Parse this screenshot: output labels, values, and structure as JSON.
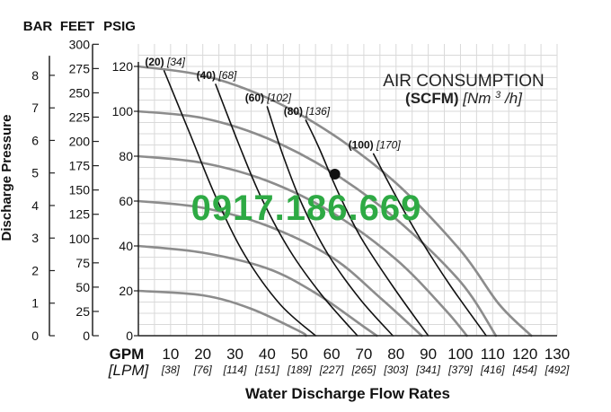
{
  "chart_data": {
    "type": "line",
    "title_line1": "AIR CONSUMPTION",
    "title_line2_bold": "(SCFM)",
    "title_line2_italic": "[Nm",
    "title_line2_sup": "3",
    "title_line2_tail": "/h]",
    "xlabel": "Water Discharge Flow Rates",
    "ylabel": "Discharge Pressure",
    "x_unit_primary": "GPM",
    "x_unit_secondary": "[LPM]",
    "x_ticks": [
      0,
      10,
      20,
      30,
      40,
      50,
      60,
      70,
      80,
      90,
      100,
      110,
      120,
      130
    ],
    "x_tick_labels": [
      "0",
      "10",
      "20",
      "30",
      "40",
      "50",
      "60",
      "70",
      "80",
      "90",
      "100",
      "110",
      "120",
      "130"
    ],
    "x_lpm_labels": [
      "",
      "[38]",
      "[76]",
      "[114]",
      "[151]",
      "[189]",
      "[227]",
      "[265]",
      "[303]",
      "[341]",
      "[379]",
      "[416]",
      "[454]",
      "[492]"
    ],
    "xlim": [
      0,
      130
    ],
    "y_psig": {
      "header": "PSIG",
      "ticks": [
        0,
        20,
        40,
        60,
        80,
        100,
        120
      ],
      "tick_labels": [
        "0",
        "20",
        "40",
        "60",
        "80",
        "100",
        "120"
      ],
      "ylim": [
        0,
        130
      ]
    },
    "y_feet": {
      "header": "FEET",
      "ticks": [
        0,
        25,
        50,
        75,
        100,
        125,
        150,
        175,
        200,
        225,
        250,
        275,
        300
      ],
      "tick_labels": [
        "0",
        "25",
        "50",
        "75",
        "100",
        "125",
        "150",
        "175",
        "200",
        "225",
        "250",
        "275",
        "300"
      ]
    },
    "y_bar": {
      "header": "BAR",
      "ticks": [
        0,
        1,
        2,
        3,
        4,
        5,
        6,
        7,
        8
      ],
      "tick_labels": [
        "0",
        "1",
        "2",
        "3",
        "4",
        "5",
        "6",
        "7",
        "8"
      ]
    },
    "grid": true,
    "pressure_curves": [
      {
        "start_pressure": 120,
        "points": [
          [
            0,
            120
          ],
          [
            20,
            116
          ],
          [
            40,
            106
          ],
          [
            60,
            90
          ],
          [
            80,
            68
          ],
          [
            100,
            38
          ],
          [
            112,
            14
          ],
          [
            122,
            0
          ]
        ]
      },
      {
        "start_pressure": 100,
        "points": [
          [
            0,
            100
          ],
          [
            20,
            97
          ],
          [
            40,
            88
          ],
          [
            60,
            73
          ],
          [
            80,
            52
          ],
          [
            100,
            24
          ],
          [
            111,
            0
          ]
        ]
      },
      {
        "start_pressure": 80,
        "points": [
          [
            0,
            80
          ],
          [
            20,
            77
          ],
          [
            40,
            69
          ],
          [
            60,
            55
          ],
          [
            80,
            34
          ],
          [
            95,
            12
          ],
          [
            102,
            0
          ]
        ]
      },
      {
        "start_pressure": 60,
        "points": [
          [
            0,
            60
          ],
          [
            20,
            57
          ],
          [
            40,
            49
          ],
          [
            60,
            35
          ],
          [
            75,
            17
          ],
          [
            88,
            0
          ]
        ]
      },
      {
        "start_pressure": 40,
        "points": [
          [
            0,
            40
          ],
          [
            20,
            37
          ],
          [
            40,
            30
          ],
          [
            55,
            19
          ],
          [
            70,
            4
          ],
          [
            74,
            0
          ]
        ]
      },
      {
        "start_pressure": 20,
        "points": [
          [
            0,
            20
          ],
          [
            20,
            18
          ],
          [
            35,
            12
          ],
          [
            50,
            2
          ],
          [
            52,
            0
          ]
        ]
      }
    ],
    "air_curves": [
      {
        "label_bold": "(20)",
        "label_italic": "[34]",
        "points": [
          [
            8,
            118
          ],
          [
            16,
            90
          ],
          [
            24,
            62
          ],
          [
            33,
            36
          ],
          [
            44,
            14
          ],
          [
            55,
            0
          ]
        ]
      },
      {
        "label_bold": "(40)",
        "label_italic": "[68]",
        "points": [
          [
            24,
            112
          ],
          [
            31,
            86
          ],
          [
            38,
            62
          ],
          [
            47,
            38
          ],
          [
            57,
            18
          ],
          [
            68,
            0
          ]
        ]
      },
      {
        "label_bold": "(60)",
        "label_italic": "[102]",
        "points": [
          [
            40,
            102
          ],
          [
            45,
            80
          ],
          [
            51,
            58
          ],
          [
            59,
            36
          ],
          [
            69,
            16
          ],
          [
            79,
            0
          ]
        ]
      },
      {
        "label_bold": "(80)",
        "label_italic": "[136]",
        "points": [
          [
            52,
            96
          ],
          [
            56,
            84
          ],
          [
            62,
            64
          ],
          [
            69,
            44
          ],
          [
            79,
            22
          ],
          [
            90,
            0
          ]
        ]
      },
      {
        "label_bold": "(100)",
        "label_italic": "[170]",
        "points": [
          [
            73,
            81
          ],
          [
            80,
            62
          ],
          [
            88,
            42
          ],
          [
            97,
            22
          ],
          [
            108,
            0
          ]
        ]
      }
    ],
    "operating_point": {
      "x": 61,
      "y": 72
    },
    "watermark": "0917.186.669"
  },
  "colors": {
    "pressure_curve": "#8c8c8c",
    "air_curve": "#111111",
    "grid": "#d9d9d9",
    "axis": "#222222",
    "watermark": "#2eaa44"
  }
}
